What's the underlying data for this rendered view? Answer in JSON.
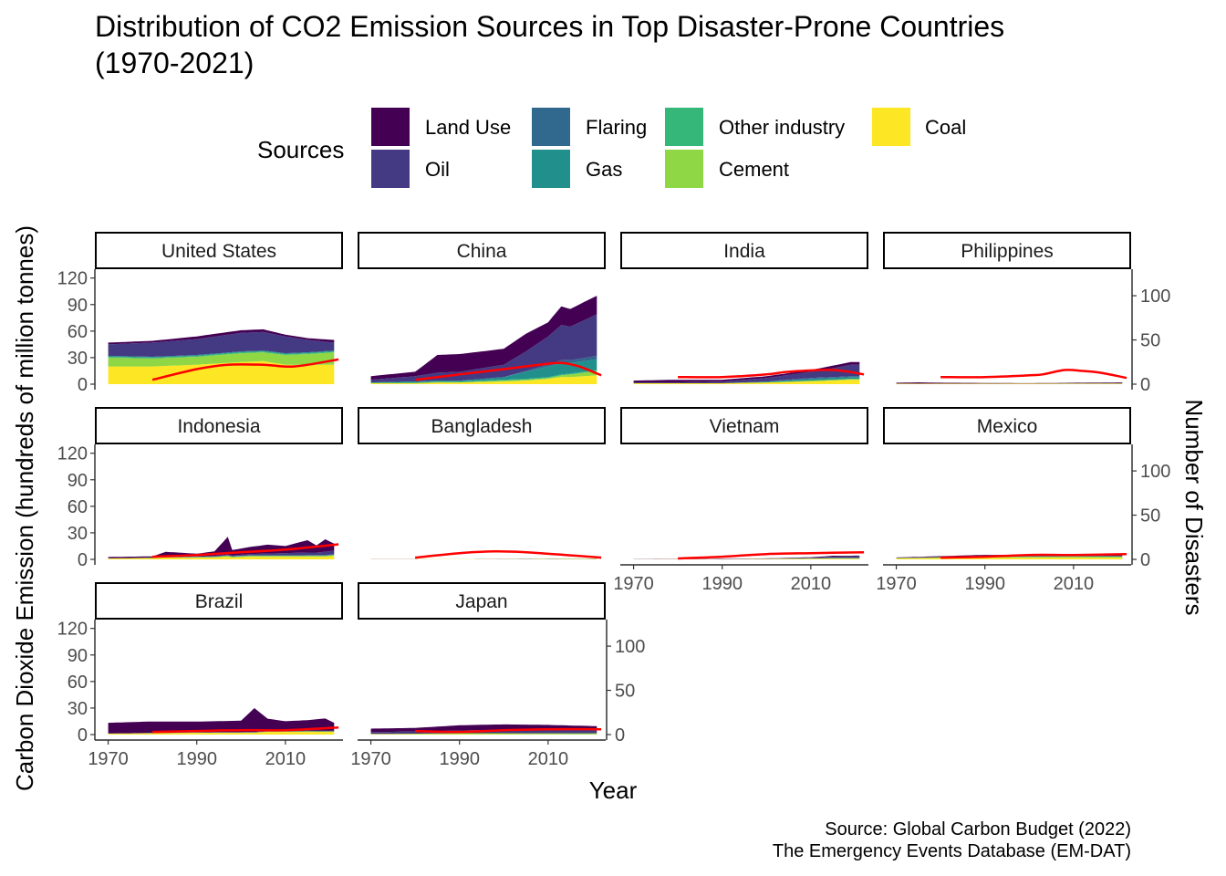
{
  "title_line1": "Distribution of CO2 Emission Sources in Top Disaster-Prone Countries",
  "title_line2": "(1970-2021)",
  "caption_line1": "Source: Global Carbon Budget (2022)",
  "caption_line2": "The Emergency Events Database (EM-DAT)",
  "chart_data": {
    "type": "area",
    "subtype": "faceted stacked area with secondary-axis line",
    "xlabel": "Year",
    "ylabel": "Carbon Dioxide Emission (hundreds of  million tonnes)",
    "y2label": "Number of Disasters",
    "xlim": [
      1967,
      2023
    ],
    "ylim": [
      0,
      130
    ],
    "y2lim": [
      0,
      130
    ],
    "x_ticks": [
      1970,
      1990,
      2010
    ],
    "y_ticks": [
      0,
      30,
      60,
      90,
      120
    ],
    "y2_ticks": [
      0,
      50,
      100
    ],
    "legend": {
      "title": "Sources",
      "position": "top",
      "items": [
        {
          "name": "Land Use",
          "color": "#440154"
        },
        {
          "name": "Oil",
          "color": "#443A83"
        },
        {
          "name": "Flaring",
          "color": "#31688E"
        },
        {
          "name": "Gas",
          "color": "#21908C"
        },
        {
          "name": "Other industry",
          "color": "#35B779"
        },
        {
          "name": "Cement",
          "color": "#8FD744"
        },
        {
          "name": "Coal",
          "color": "#FDE725"
        }
      ]
    },
    "line_series": {
      "name": "Number of Disasters (smoothed)",
      "color": "#FF0000"
    },
    "grid": false,
    "stack_order_bottom_to_top": [
      "Coal",
      "Cement",
      "Other industry",
      "Gas",
      "Flaring",
      "Oil",
      "Land Use"
    ],
    "facets": [
      {
        "country": "United States",
        "emission_keys": [
          [
            1970,
            13,
            1,
            0,
            10,
            1,
            20,
            2
          ],
          [
            1980,
            16,
            1,
            0,
            9,
            1,
            20,
            2
          ],
          [
            1990,
            18,
            1,
            0,
            9,
            1,
            22,
            3
          ],
          [
            2000,
            21,
            1,
            0,
            10,
            1,
            25,
            3
          ],
          [
            2005,
            21,
            1,
            0,
            10,
            1,
            26,
            3
          ],
          [
            2010,
            19,
            1,
            0,
            11,
            1,
            22,
            2
          ],
          [
            2015,
            14,
            1,
            0,
            12,
            1,
            22,
            2
          ],
          [
            2021,
            9,
            1,
            0,
            14,
            1,
            22,
            3
          ]
        ],
        "disasters": [
          [
            1980,
            5
          ],
          [
            1990,
            17
          ],
          [
            1997,
            22
          ],
          [
            2005,
            22
          ],
          [
            2012,
            20
          ],
          [
            2022,
            28
          ]
        ]
      },
      {
        "country": "China",
        "emission_keys": [
          [
            1970,
            3,
            0,
            0,
            0,
            1,
            1,
            4
          ],
          [
            1980,
            6,
            1,
            0,
            0,
            1,
            1,
            5
          ],
          [
            1985,
            9,
            1,
            0,
            0,
            1,
            2,
            20
          ],
          [
            1990,
            10,
            1,
            0,
            0,
            1,
            2,
            20
          ],
          [
            2000,
            14,
            3,
            0,
            1,
            1,
            3,
            18
          ],
          [
            2005,
            22,
            8,
            1,
            1,
            1,
            4,
            20
          ],
          [
            2010,
            32,
            12,
            2,
            1,
            1,
            6,
            16
          ],
          [
            2013,
            40,
            13,
            3,
            2,
            1,
            8,
            21
          ],
          [
            2015,
            38,
            12,
            3,
            3,
            1,
            8,
            20
          ],
          [
            2021,
            47,
            12,
            4,
            5,
            1,
            10,
            21
          ]
        ],
        "disasters": [
          [
            1980,
            5
          ],
          [
            1990,
            11
          ],
          [
            2000,
            17
          ],
          [
            2008,
            22
          ],
          [
            2013,
            24
          ],
          [
            2017,
            20
          ],
          [
            2022,
            10
          ]
        ]
      },
      {
        "country": "India",
        "emission_keys": [
          [
            1970,
            1,
            0,
            0,
            0,
            0,
            1,
            2
          ],
          [
            1980,
            1,
            0,
            0,
            0,
            0,
            1,
            3
          ],
          [
            1990,
            2,
            0,
            0,
            0,
            0,
            1,
            2
          ],
          [
            2000,
            4,
            1,
            0,
            0,
            0,
            2,
            2
          ],
          [
            2010,
            7,
            2,
            1,
            1,
            0,
            3,
            2
          ],
          [
            2015,
            10,
            2,
            1,
            1,
            0,
            4,
            3
          ],
          [
            2019,
            13,
            2,
            1,
            1,
            0,
            5,
            3
          ],
          [
            2021,
            13,
            2,
            1,
            1,
            0,
            5,
            3
          ]
        ],
        "disasters": [
          [
            1980,
            8
          ],
          [
            1990,
            8
          ],
          [
            2000,
            11
          ],
          [
            2005,
            14
          ],
          [
            2015,
            16
          ],
          [
            2022,
            11
          ]
        ]
      },
      {
        "country": "Philippines",
        "emission_keys": [
          [
            1970,
            0.1,
            0,
            0,
            0,
            0,
            0.5,
            1
          ],
          [
            1975,
            0.1,
            0,
            0,
            0,
            0,
            0.5,
            1.5
          ],
          [
            1980,
            0.1,
            0,
            0,
            0,
            0,
            0.5,
            1
          ],
          [
            2000,
            0.2,
            0,
            0,
            0,
            0,
            0.6,
            0.3
          ],
          [
            2021,
            0.5,
            0.1,
            0,
            0.1,
            0,
            0.6,
            0.8
          ]
        ],
        "disasters": [
          [
            1980,
            8
          ],
          [
            1990,
            8
          ],
          [
            2000,
            10
          ],
          [
            2003,
            11
          ],
          [
            2008,
            16
          ],
          [
            2012,
            15
          ],
          [
            2016,
            13
          ],
          [
            2022,
            7
          ]
        ]
      },
      {
        "country": "Indonesia",
        "emission_keys": [
          [
            1970,
            0.1,
            0,
            0,
            0.1,
            0,
            1,
            1.5
          ],
          [
            1980,
            0.2,
            0,
            0,
            0.2,
            0,
            1.5,
            1.5
          ],
          [
            1983,
            0.2,
            0,
            0,
            0.3,
            0,
            2,
            6
          ],
          [
            1990,
            0.5,
            0.2,
            0.2,
            0.5,
            0,
            2,
            3
          ],
          [
            1994,
            0.8,
            0.2,
            0.2,
            0.8,
            0,
            2,
            5
          ],
          [
            1997,
            1,
            0.3,
            0.2,
            1,
            0,
            3,
            20
          ],
          [
            1998,
            1,
            0.3,
            0.2,
            1,
            0,
            2,
            6
          ],
          [
            2002,
            1.5,
            0.3,
            0.2,
            1,
            0,
            3,
            8
          ],
          [
            2006,
            2,
            0.4,
            0.2,
            1,
            0,
            3,
            10
          ],
          [
            2010,
            2.5,
            0.4,
            0.2,
            1,
            0,
            3,
            8
          ],
          [
            2015,
            3,
            0.5,
            0.2,
            1,
            0,
            3,
            14
          ],
          [
            2017,
            3,
            0.5,
            0.2,
            1,
            0,
            3,
            8
          ],
          [
            2019,
            4,
            0.5,
            0.2,
            1,
            0,
            3,
            14
          ],
          [
            2021,
            4,
            0.6,
            0.2,
            1,
            0,
            4,
            8
          ]
        ],
        "disasters": [
          [
            1980,
            3
          ],
          [
            1990,
            5
          ],
          [
            2000,
            8
          ],
          [
            2010,
            11
          ],
          [
            2022,
            17
          ]
        ]
      },
      {
        "country": "Bangladesh",
        "emission_keys": [
          [
            1970,
            0,
            0,
            0,
            0,
            0,
            0.1,
            0.2
          ],
          [
            1990,
            0,
            0,
            0,
            0.1,
            0,
            0.1,
            0.1
          ],
          [
            2021,
            0.1,
            0,
            0,
            0.5,
            0,
            0.2,
            0.1
          ]
        ],
        "disasters": [
          [
            1980,
            2
          ],
          [
            1990,
            7
          ],
          [
            1998,
            9
          ],
          [
            2005,
            8
          ],
          [
            2014,
            5
          ],
          [
            2022,
            2
          ]
        ]
      },
      {
        "country": "Vietnam",
        "emission_keys": [
          [
            1970,
            0.1,
            0,
            0,
            0,
            0,
            0.1,
            0.2
          ],
          [
            1990,
            0.1,
            0,
            0,
            0,
            0,
            0.3,
            0.3
          ],
          [
            2000,
            0.2,
            0,
            0,
            0.2,
            0,
            0.4,
            0.3
          ],
          [
            2010,
            0.8,
            0.2,
            0,
            0.4,
            0,
            0.6,
            0.4
          ],
          [
            2015,
            1.5,
            0.3,
            0,
            0.5,
            0,
            0.8,
            1
          ],
          [
            2021,
            2,
            0.4,
            0,
            0.5,
            0,
            0.8,
            0.5
          ]
        ],
        "disasters": [
          [
            1980,
            1
          ],
          [
            1990,
            3
          ],
          [
            2000,
            6
          ],
          [
            2010,
            7
          ],
          [
            2022,
            8
          ]
        ]
      },
      {
        "country": "Mexico",
        "emission_keys": [
          [
            1970,
            0.2,
            0,
            0,
            0.5,
            0,
            1,
            0.5
          ],
          [
            1980,
            0.3,
            0,
            0,
            0.8,
            0,
            1.5,
            1
          ],
          [
            1990,
            0.4,
            0.1,
            0.1,
            1,
            0,
            2,
            1.5
          ],
          [
            2000,
            0.6,
            0.2,
            0.2,
            1,
            0,
            2,
            1
          ],
          [
            2010,
            0.7,
            0.2,
            0.2,
            1.2,
            0,
            2,
            0.8
          ],
          [
            2021,
            0.5,
            0.2,
            0.2,
            1.2,
            0,
            2,
            0.6
          ]
        ],
        "disasters": [
          [
            1980,
            2
          ],
          [
            1990,
            3
          ],
          [
            2000,
            5
          ],
          [
            2010,
            5
          ],
          [
            2022,
            6
          ]
        ]
      },
      {
        "country": "Brazil",
        "emission_keys": [
          [
            1970,
            0.2,
            0,
            0,
            0.1,
            0,
            1,
            12
          ],
          [
            1980,
            0.2,
            0,
            0,
            0.1,
            0,
            1.5,
            13
          ],
          [
            1990,
            0.3,
            0.1,
            0,
            0.2,
            0,
            2,
            12
          ],
          [
            2000,
            0.3,
            0.1,
            0,
            0.3,
            0,
            2,
            13
          ],
          [
            2003,
            0.4,
            0.1,
            0,
            0.4,
            0,
            2,
            27
          ],
          [
            2006,
            0.4,
            0.1,
            0,
            0.5,
            0,
            3,
            14
          ],
          [
            2010,
            0.5,
            0.1,
            0,
            0.5,
            0,
            3,
            11
          ],
          [
            2015,
            0.5,
            0.2,
            0,
            0.6,
            0,
            3,
            12
          ],
          [
            2019,
            0.5,
            0.1,
            0,
            0.6,
            0,
            3,
            14
          ],
          [
            2021,
            0.6,
            0.1,
            0,
            0.6,
            0,
            3,
            9
          ]
        ],
        "disasters": [
          [
            1980,
            3
          ],
          [
            1990,
            4
          ],
          [
            2000,
            5
          ],
          [
            2010,
            5
          ],
          [
            2022,
            8
          ]
        ]
      },
      {
        "country": "Japan",
        "emission_keys": [
          [
            1970,
            2,
            0,
            0,
            0.2,
            0,
            0.5,
            4
          ],
          [
            1980,
            2.5,
            0,
            0,
            0.5,
            0,
            0.5,
            4
          ],
          [
            1990,
            3,
            0,
            0,
            1,
            0,
            0.5,
            6
          ],
          [
            2000,
            4,
            0,
            0,
            1,
            0,
            0.5,
            6
          ],
          [
            2010,
            4,
            0,
            0,
            1,
            0,
            0.4,
            5.5
          ],
          [
            2021,
            4,
            0,
            0,
            1.2,
            0,
            0.3,
            4
          ]
        ],
        "disasters": [
          [
            1980,
            4
          ],
          [
            1990,
            3
          ],
          [
            2000,
            5
          ],
          [
            2010,
            6
          ],
          [
            2022,
            6
          ]
        ]
      }
    ]
  }
}
